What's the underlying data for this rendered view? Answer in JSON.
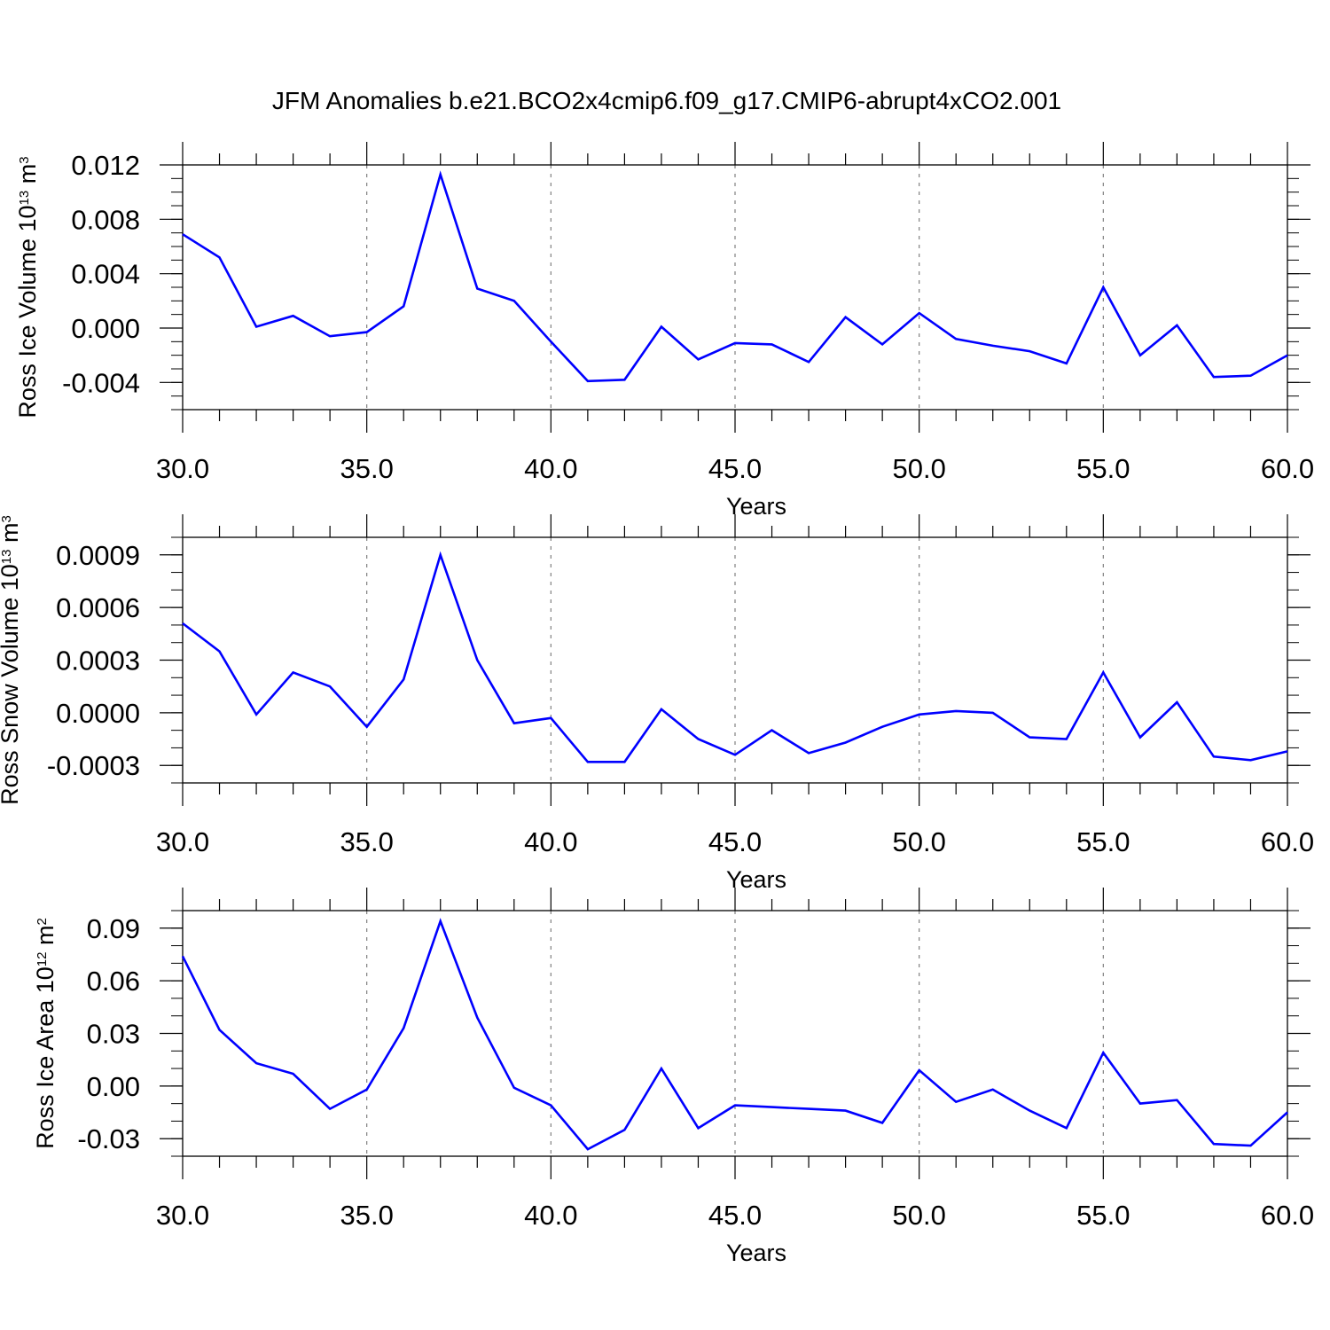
{
  "figure_title": "JFM Anomalies b.e21.BCO2x4cmip6.f09_g17.CMIP6-abrupt4xCO2.001",
  "colors": {
    "line": "#0000ff",
    "axis": "#000000",
    "grid": "#808080"
  },
  "chart_data": [
    {
      "type": "line",
      "ylabel": {
        "text": "Ross Ice Volume 10",
        "exp": "13",
        "unit": " m",
        "unit_exp": "3"
      },
      "xlabel": "Years",
      "xlim": [
        30,
        60
      ],
      "ylim": [
        -0.006,
        0.012
      ],
      "yticks": [
        -0.004,
        0.0,
        0.004,
        0.008,
        0.012
      ],
      "ytick_labels": [
        "-0.004",
        "0.000",
        "0.004",
        "0.008",
        "0.012"
      ],
      "yminor_step": 0.001,
      "xticks": [
        30,
        35,
        40,
        45,
        50,
        55,
        60
      ],
      "xtick_labels": [
        "30.0",
        "35.0",
        "40.0",
        "45.0",
        "50.0",
        "55.0",
        "60.0"
      ],
      "grid_x": [
        35,
        40,
        45,
        50,
        55
      ],
      "series": [
        {
          "name": "Ross Ice Volume",
          "x": [
            30,
            31,
            32,
            33,
            34,
            35,
            36,
            37,
            38,
            39,
            40,
            41,
            42,
            43,
            44,
            45,
            46,
            47,
            48,
            49,
            50,
            51,
            52,
            53,
            54,
            55,
            56,
            57,
            58,
            59,
            60
          ],
          "values": [
            0.0069,
            0.0052,
            0.0001,
            0.0009,
            -0.0006,
            -0.0003,
            0.0016,
            0.0113,
            0.0029,
            0.002,
            -0.001,
            -0.0039,
            -0.0038,
            0.0001,
            -0.0023,
            -0.0011,
            -0.0012,
            -0.0025,
            0.0008,
            -0.0012,
            0.0011,
            -0.0008,
            -0.0013,
            -0.0017,
            -0.0026,
            0.003,
            -0.002,
            0.0002,
            -0.0036,
            -0.0035,
            -0.002
          ]
        }
      ]
    },
    {
      "type": "line",
      "ylabel": {
        "text": "Ross Snow Volume 10",
        "exp": "13",
        "unit": " m",
        "unit_exp": "3"
      },
      "xlabel": "Years",
      "xlim": [
        30,
        60
      ],
      "ylim": [
        -0.0004,
        0.001
      ],
      "yticks": [
        -0.0003,
        0.0,
        0.0003,
        0.0006,
        0.0009
      ],
      "ytick_labels": [
        "-0.0003",
        "0.0000",
        "0.0003",
        "0.0006",
        "0.0009"
      ],
      "yminor_step": 0.0001,
      "xticks": [
        30,
        35,
        40,
        45,
        50,
        55,
        60
      ],
      "xtick_labels": [
        "30.0",
        "35.0",
        "40.0",
        "45.0",
        "50.0",
        "55.0",
        "60.0"
      ],
      "grid_x": [
        35,
        40,
        45,
        50,
        55
      ],
      "series": [
        {
          "name": "Ross Snow Volume",
          "x": [
            30,
            31,
            32,
            33,
            34,
            35,
            36,
            37,
            38,
            39,
            40,
            41,
            42,
            43,
            44,
            45,
            46,
            47,
            48,
            49,
            50,
            51,
            52,
            53,
            54,
            55,
            56,
            57,
            58,
            59,
            60
          ],
          "values": [
            0.00051,
            0.00035,
            -1e-05,
            0.00023,
            0.00015,
            -8e-05,
            0.00019,
            0.0009,
            0.0003,
            -6e-05,
            -3e-05,
            -0.00028,
            -0.00028,
            2e-05,
            -0.00015,
            -0.00024,
            -0.0001,
            -0.00023,
            -0.00017,
            -8e-05,
            -1e-05,
            1e-05,
            0.0,
            -0.00014,
            -0.00015,
            0.00023,
            -0.00014,
            6e-05,
            -0.00025,
            -0.00027,
            -0.00022
          ]
        }
      ]
    },
    {
      "type": "line",
      "ylabel": {
        "text": "Ross Ice Area 10",
        "exp": "12",
        "unit": " m",
        "unit_exp": "2"
      },
      "xlabel": "Years",
      "xlim": [
        30,
        60
      ],
      "ylim": [
        -0.04,
        0.1
      ],
      "yticks": [
        -0.03,
        0.0,
        0.03,
        0.06,
        0.09
      ],
      "ytick_labels": [
        "-0.03",
        "0.00",
        "0.03",
        "0.06",
        "0.09"
      ],
      "yminor_step": 0.01,
      "xticks": [
        30,
        35,
        40,
        45,
        50,
        55,
        60
      ],
      "xtick_labels": [
        "30.0",
        "35.0",
        "40.0",
        "45.0",
        "50.0",
        "55.0",
        "60.0"
      ],
      "grid_x": [
        35,
        40,
        45,
        50,
        55
      ],
      "series": [
        {
          "name": "Ross Ice Area",
          "x": [
            30,
            31,
            32,
            33,
            34,
            35,
            36,
            37,
            38,
            39,
            40,
            41,
            42,
            43,
            44,
            45,
            46,
            47,
            48,
            49,
            50,
            51,
            52,
            53,
            54,
            55,
            56,
            57,
            58,
            59,
            60
          ],
          "values": [
            0.074,
            0.032,
            0.013,
            0.007,
            -0.013,
            -0.002,
            0.033,
            0.094,
            0.039,
            -0.001,
            -0.011,
            -0.036,
            -0.025,
            0.01,
            -0.024,
            -0.011,
            -0.012,
            -0.013,
            -0.014,
            -0.021,
            0.009,
            -0.009,
            -0.002,
            -0.014,
            -0.024,
            0.019,
            -0.01,
            -0.008,
            -0.033,
            -0.034,
            -0.015
          ]
        }
      ]
    }
  ]
}
